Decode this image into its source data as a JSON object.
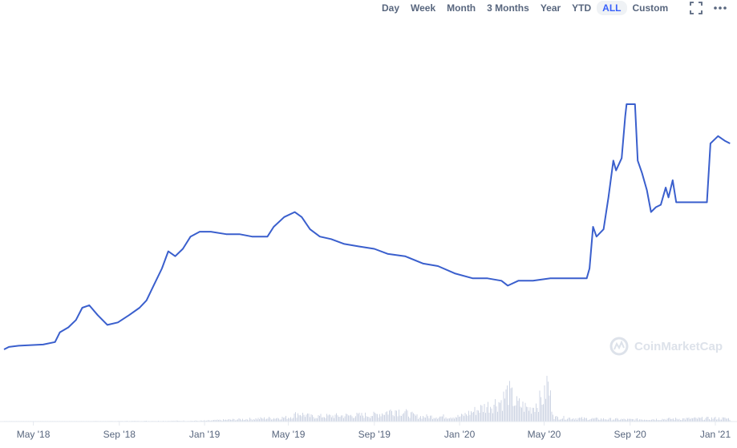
{
  "toolbar": {
    "ranges": [
      "Day",
      "Week",
      "Month",
      "3 Months",
      "Year",
      "YTD",
      "ALL",
      "Custom"
    ],
    "active": "ALL",
    "icons": [
      "fullscreen-icon",
      "more-icon"
    ]
  },
  "watermark": {
    "text": "CoinMarketCap"
  },
  "colors": {
    "line": "#3a5fcd",
    "volume": "#cfd6e4",
    "axis_text": "#58667e",
    "active_bg": "#eff2f5",
    "active_text": "#3861fb"
  },
  "chart_data": {
    "type": "line",
    "x_ticks": [
      "May '18",
      "Sep '18",
      "Jan '19",
      "May '19",
      "Sep '19",
      "Jan '20",
      "May '20",
      "Sep '20",
      "Jan '21"
    ],
    "x_tick_dates": [
      "2018-05-01",
      "2018-09-01",
      "2019-01-01",
      "2019-05-01",
      "2019-09-01",
      "2020-01-01",
      "2020-05-01",
      "2020-09-01",
      "2021-01-01"
    ],
    "x_range": [
      "2018-03-20",
      "2021-01-24"
    ],
    "y_range_relative": [
      0,
      1
    ],
    "y_axis_labels_shown": false,
    "grid": false,
    "series": [
      {
        "type": "line",
        "points": [
          [
            "2018-03-20",
            0.0
          ],
          [
            "2018-03-27",
            0.01
          ],
          [
            "2018-04-10",
            0.015
          ],
          [
            "2018-05-15",
            0.02
          ],
          [
            "2018-06-01",
            0.03
          ],
          [
            "2018-06-08",
            0.07
          ],
          [
            "2018-06-20",
            0.09
          ],
          [
            "2018-07-01",
            0.12
          ],
          [
            "2018-07-10",
            0.17
          ],
          [
            "2018-07-20",
            0.18
          ],
          [
            "2018-08-01",
            0.14
          ],
          [
            "2018-08-15",
            0.1
          ],
          [
            "2018-08-30",
            0.11
          ],
          [
            "2018-09-15",
            0.14
          ],
          [
            "2018-09-30",
            0.17
          ],
          [
            "2018-10-10",
            0.2
          ],
          [
            "2018-10-20",
            0.26
          ],
          [
            "2018-11-01",
            0.33
          ],
          [
            "2018-11-10",
            0.4
          ],
          [
            "2018-11-20",
            0.38
          ],
          [
            "2018-12-01",
            0.41
          ],
          [
            "2018-12-12",
            0.46
          ],
          [
            "2018-12-25",
            0.48
          ],
          [
            "2019-01-10",
            0.48
          ],
          [
            "2019-02-01",
            0.47
          ],
          [
            "2019-02-20",
            0.47
          ],
          [
            "2019-03-10",
            0.46
          ],
          [
            "2019-04-01",
            0.46
          ],
          [
            "2019-04-10",
            0.5
          ],
          [
            "2019-04-25",
            0.54
          ],
          [
            "2019-05-10",
            0.56
          ],
          [
            "2019-05-20",
            0.54
          ],
          [
            "2019-06-01",
            0.49
          ],
          [
            "2019-06-15",
            0.46
          ],
          [
            "2019-07-01",
            0.45
          ],
          [
            "2019-07-20",
            0.43
          ],
          [
            "2019-08-10",
            0.42
          ],
          [
            "2019-09-01",
            0.41
          ],
          [
            "2019-09-20",
            0.39
          ],
          [
            "2019-10-15",
            0.38
          ],
          [
            "2019-11-10",
            0.35
          ],
          [
            "2019-12-01",
            0.34
          ],
          [
            "2019-12-25",
            0.31
          ],
          [
            "2020-01-20",
            0.29
          ],
          [
            "2020-02-10",
            0.29
          ],
          [
            "2020-03-01",
            0.28
          ],
          [
            "2020-03-10",
            0.26
          ],
          [
            "2020-03-25",
            0.28
          ],
          [
            "2020-04-15",
            0.28
          ],
          [
            "2020-05-10",
            0.29
          ],
          [
            "2020-06-10",
            0.29
          ],
          [
            "2020-07-01",
            0.29
          ],
          [
            "2020-07-05",
            0.33
          ],
          [
            "2020-07-10",
            0.5
          ],
          [
            "2020-07-15",
            0.46
          ],
          [
            "2020-07-25",
            0.49
          ],
          [
            "2020-08-01",
            0.62
          ],
          [
            "2020-08-08",
            0.77
          ],
          [
            "2020-08-12",
            0.73
          ],
          [
            "2020-08-20",
            0.78
          ],
          [
            "2020-08-25",
            0.95
          ],
          [
            "2020-08-27",
            1.0
          ],
          [
            "2020-09-08",
            1.0
          ],
          [
            "2020-09-12",
            0.77
          ],
          [
            "2020-09-18",
            0.72
          ],
          [
            "2020-09-25",
            0.65
          ],
          [
            "2020-10-01",
            0.56
          ],
          [
            "2020-10-08",
            0.58
          ],
          [
            "2020-10-15",
            0.59
          ],
          [
            "2020-10-22",
            0.66
          ],
          [
            "2020-10-26",
            0.62
          ],
          [
            "2020-11-01",
            0.69
          ],
          [
            "2020-11-06",
            0.6
          ],
          [
            "2020-11-10",
            0.6
          ],
          [
            "2020-12-20",
            0.6
          ],
          [
            "2020-12-25",
            0.84
          ],
          [
            "2021-01-05",
            0.87
          ],
          [
            "2021-01-15",
            0.85
          ],
          [
            "2021-01-22",
            0.84
          ]
        ]
      },
      {
        "type": "volume",
        "points": [
          [
            "2018-03-20",
            0.0
          ],
          [
            "2019-01-01",
            0.02
          ],
          [
            "2019-05-01",
            0.1
          ],
          [
            "2019-05-15",
            0.2
          ],
          [
            "2019-06-01",
            0.12
          ],
          [
            "2019-09-01",
            0.16
          ],
          [
            "2019-10-01",
            0.28
          ],
          [
            "2019-11-01",
            0.12
          ],
          [
            "2020-01-01",
            0.12
          ],
          [
            "2020-02-01",
            0.32
          ],
          [
            "2020-03-01",
            0.5
          ],
          [
            "2020-03-10",
            0.72
          ],
          [
            "2020-03-20",
            0.45
          ],
          [
            "2020-04-10",
            0.3
          ],
          [
            "2020-05-01",
            0.6
          ],
          [
            "2020-05-05",
            0.95
          ],
          [
            "2020-05-15",
            0.1
          ],
          [
            "2020-07-01",
            0.07
          ],
          [
            "2020-09-01",
            0.05
          ],
          [
            "2021-01-01",
            0.08
          ],
          [
            "2021-01-22",
            0.07
          ]
        ]
      }
    ]
  }
}
